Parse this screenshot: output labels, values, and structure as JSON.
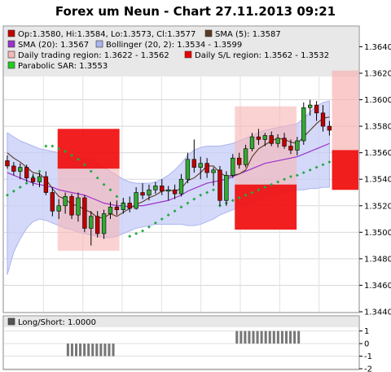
{
  "chart_data": {
    "type": "candlestick",
    "title": "Forex um Neun - Chart 27.11.2013 09:21",
    "legend": [
      {
        "label": "Op:1.3580, Hi:1.3584, Lo:1.3573, Cl:1.3577",
        "color": "#c00000",
        "swatch": "box"
      },
      {
        "label": "SMA (5): 1.3587",
        "color": "#5a3a22",
        "swatch": "box"
      },
      {
        "label": "SMA (20): 1.3567",
        "color": "#9933cc",
        "swatch": "box"
      },
      {
        "label": "Bollinger (20, 2): 1.3534 - 1.3599",
        "color": "#aab4f0",
        "swatch": "box"
      },
      {
        "label": "Daily trading region: 1.3622 - 1.3562",
        "color": "#f4b8b8",
        "swatch": "box"
      },
      {
        "label": "Daily S/L region: 1.3562 - 1.3532",
        "color": "#ee0000",
        "swatch": "box"
      },
      {
        "label": "Parabolic SAR: 1.3553",
        "color": "#22cc22",
        "swatch": "box"
      }
    ],
    "y_ticks": [
      "1.3440",
      "1.3460",
      "1.3480",
      "1.3500",
      "1.3520",
      "1.3540",
      "1.3560",
      "1.3580",
      "1.3600",
      "1.3620",
      "1.3640"
    ],
    "ylim": [
      1.344,
      1.3655
    ],
    "grid": true,
    "candles": [
      [
        1.3554,
        1.3558,
        1.3548,
        1.355
      ],
      [
        1.355,
        1.3553,
        1.3543,
        1.3546
      ],
      [
        1.3546,
        1.3552,
        1.354,
        1.3549
      ],
      [
        1.3549,
        1.3551,
        1.3538,
        1.3541
      ],
      [
        1.3541,
        1.3544,
        1.3535,
        1.3538
      ],
      [
        1.3538,
        1.3545,
        1.3534,
        1.3542
      ],
      [
        1.3542,
        1.3546,
        1.3528,
        1.353
      ],
      [
        1.353,
        1.3534,
        1.3512,
        1.3516
      ],
      [
        1.3516,
        1.3525,
        1.351,
        1.352
      ],
      [
        1.352,
        1.353,
        1.3514,
        1.3527
      ],
      [
        1.3527,
        1.3529,
        1.351,
        1.3513
      ],
      [
        1.3513,
        1.353,
        1.3508,
        1.3526
      ],
      [
        1.3526,
        1.3528,
        1.35,
        1.3503
      ],
      [
        1.3503,
        1.3516,
        1.349,
        1.3512
      ],
      [
        1.3512,
        1.3516,
        1.3496,
        1.3499
      ],
      [
        1.3499,
        1.3517,
        1.3495,
        1.3514
      ],
      [
        1.3514,
        1.3523,
        1.351,
        1.3519
      ],
      [
        1.3519,
        1.3524,
        1.3513,
        1.3517
      ],
      [
        1.3517,
        1.3526,
        1.3514,
        1.3522
      ],
      [
        1.3522,
        1.3527,
        1.3515,
        1.3518
      ],
      [
        1.3518,
        1.3534,
        1.3517,
        1.353
      ],
      [
        1.353,
        1.3537,
        1.3525,
        1.3528
      ],
      [
        1.3528,
        1.3536,
        1.3524,
        1.3532
      ],
      [
        1.3532,
        1.3538,
        1.3529,
        1.3535
      ],
      [
        1.3535,
        1.354,
        1.3528,
        1.3531
      ],
      [
        1.3531,
        1.3535,
        1.3524,
        1.3532
      ],
      [
        1.3532,
        1.3536,
        1.3525,
        1.3529
      ],
      [
        1.3529,
        1.3544,
        1.3527,
        1.354
      ],
      [
        1.354,
        1.356,
        1.3537,
        1.3555
      ],
      [
        1.3555,
        1.357,
        1.3545,
        1.3549
      ],
      [
        1.3549,
        1.3557,
        1.354,
        1.3552
      ],
      [
        1.3552,
        1.3556,
        1.3541,
        1.3545
      ],
      [
        1.3545,
        1.3549,
        1.3535,
        1.3547
      ],
      [
        1.3547,
        1.355,
        1.352,
        1.3524
      ],
      [
        1.3524,
        1.3546,
        1.352,
        1.3543
      ],
      [
        1.3543,
        1.3559,
        1.3541,
        1.3556
      ],
      [
        1.3556,
        1.356,
        1.3548,
        1.3551
      ],
      [
        1.3551,
        1.3566,
        1.3549,
        1.3563
      ],
      [
        1.3563,
        1.3575,
        1.3561,
        1.3572
      ],
      [
        1.3572,
        1.3578,
        1.3566,
        1.357
      ],
      [
        1.357,
        1.3575,
        1.3565,
        1.3573
      ],
      [
        1.3573,
        1.3576,
        1.3565,
        1.3567
      ],
      [
        1.3567,
        1.3574,
        1.3564,
        1.3571
      ],
      [
        1.3571,
        1.3575,
        1.3563,
        1.3565
      ],
      [
        1.3565,
        1.357,
        1.3559,
        1.3562
      ],
      [
        1.3562,
        1.3572,
        1.3558,
        1.3569
      ],
      [
        1.3569,
        1.3598,
        1.3566,
        1.3594
      ],
      [
        1.3594,
        1.36,
        1.3588,
        1.3596
      ],
      [
        1.3596,
        1.3599,
        1.3584,
        1.359
      ],
      [
        1.359,
        1.3596,
        1.3576,
        1.358
      ],
      [
        1.358,
        1.3584,
        1.3573,
        1.3577
      ]
    ],
    "sma5": [
      1.356,
      1.3556,
      1.3553,
      1.3549,
      1.3545,
      1.3544,
      1.354,
      1.3533,
      1.3527,
      1.3525,
      1.3521,
      1.352,
      1.3517,
      1.3515,
      1.3511,
      1.3511,
      1.3514,
      1.3512,
      1.3515,
      1.3518,
      1.3521,
      1.3523,
      1.3526,
      1.3528,
      1.3531,
      1.3532,
      1.3531,
      1.3533,
      1.3539,
      1.3541,
      1.3545,
      1.355,
      1.355,
      1.3545,
      1.3542,
      1.3543,
      1.3544,
      1.3547,
      1.3557,
      1.3563,
      1.3566,
      1.3569,
      1.3571,
      1.357,
      1.3568,
      1.3567,
      1.3572,
      1.3577,
      1.3582,
      1.3586,
      1.3587
    ],
    "sma20": [
      1.3545,
      1.3543,
      1.3541,
      1.3539,
      1.3537,
      1.3536,
      1.3535,
      1.3534,
      1.3532,
      1.3531,
      1.353,
      1.3529,
      1.3528,
      1.3526,
      1.3524,
      1.3522,
      1.3521,
      1.352,
      1.352,
      1.3519,
      1.352,
      1.352,
      1.3521,
      1.3522,
      1.3523,
      1.3524,
      1.3526,
      1.3528,
      1.3531,
      1.3533,
      1.3535,
      1.3537,
      1.3538,
      1.3539,
      1.354,
      1.3542,
      1.3544,
      1.3546,
      1.3548,
      1.355,
      1.3552,
      1.3553,
      1.3554,
      1.3555,
      1.3556,
      1.3557,
      1.3559,
      1.3561,
      1.3563,
      1.3565,
      1.3567
    ],
    "bollinger_upper": [
      1.3575,
      1.3572,
      1.3569,
      1.3567,
      1.3565,
      1.3563,
      1.3562,
      1.3561,
      1.356,
      1.3559,
      1.3558,
      1.3557,
      1.3556,
      1.3555,
      1.3552,
      1.3549,
      1.3546,
      1.3543,
      1.354,
      1.3538,
      1.3537,
      1.3537,
      1.3537,
      1.3538,
      1.354,
      1.3543,
      1.3547,
      1.3552,
      1.3558,
      1.3562,
      1.3564,
      1.3565,
      1.3565,
      1.3565,
      1.3566,
      1.3567,
      1.3569,
      1.3571,
      1.3573,
      1.3575,
      1.3577,
      1.3578,
      1.3579,
      1.358,
      1.3581,
      1.3582,
      1.3586,
      1.3591,
      1.3595,
      1.3598,
      1.3599
    ],
    "bollinger_lower": [
      1.3468,
      1.3485,
      1.3495,
      1.3503,
      1.3508,
      1.351,
      1.3509,
      1.3507,
      1.3505,
      1.3503,
      1.3502,
      1.35,
      1.3499,
      1.3498,
      1.3497,
      1.3496,
      1.3496,
      1.3497,
      1.3499,
      1.3501,
      1.3503,
      1.3504,
      1.3505,
      1.3506,
      1.3506,
      1.3506,
      1.3506,
      1.3506,
      1.3505,
      1.3505,
      1.3506,
      1.3508,
      1.351,
      1.3513,
      1.3515,
      1.3517,
      1.3519,
      1.3521,
      1.3523,
      1.3525,
      1.3527,
      1.3528,
      1.3529,
      1.353,
      1.3531,
      1.3532,
      1.3532,
      1.3533,
      1.3533,
      1.3534,
      1.3534
    ],
    "parabolic_sar": [
      1.3528,
      1.3531,
      1.3534,
      1.3537,
      1.3542,
      1.3546,
      1.3565,
      1.3565,
      1.3563,
      1.3561,
      1.3558,
      1.3555,
      1.3551,
      1.3546,
      1.3541,
      1.3536,
      1.3532,
      1.3527,
      1.3522,
      1.3497,
      1.3499,
      1.3501,
      1.3504,
      1.3507,
      1.351,
      1.3513,
      1.3516,
      1.3519,
      1.3522,
      1.3525,
      1.3528,
      1.353,
      1.3532,
      1.352,
      1.3522,
      1.3524,
      1.3526,
      1.3528,
      1.353,
      1.3532,
      1.3534,
      1.3536,
      1.3538,
      1.354,
      1.3542,
      1.3543,
      1.3545,
      1.3547,
      1.3549,
      1.3551,
      1.3553
    ],
    "regions": [
      {
        "kind": "trading",
        "start": 13,
        "end": 28,
        "high": 1.3578,
        "low": 1.3486
      },
      {
        "kind": "sl",
        "start": 13,
        "end": 28,
        "high": 1.3578,
        "low": 1.3548
      },
      {
        "kind": "trading",
        "start": 56,
        "end": 71,
        "high": 1.3595,
        "low": 1.3502
      },
      {
        "kind": "sl",
        "start": 56,
        "end": 71,
        "high": 1.3536,
        "low": 1.3502
      }
    ],
    "edge_region": {
      "high": 1.3622,
      "low": 1.3532
    },
    "subchart": {
      "legend": "Long/Short: 1.0000",
      "ticks": [
        "1",
        "0",
        "-1",
        "-2"
      ],
      "ylim": [
        -2,
        1.3
      ],
      "bars": [
        {
          "start": 15,
          "end": 27,
          "value": -1
        },
        {
          "start": 56,
          "end": 72,
          "value": 1
        }
      ]
    }
  }
}
